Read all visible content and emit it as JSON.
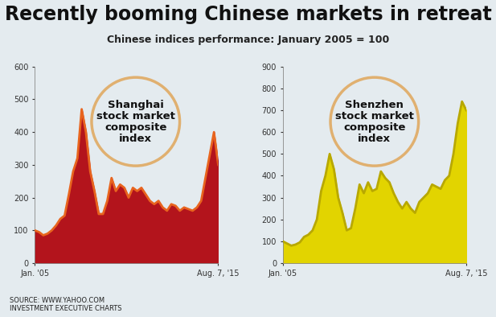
{
  "title": "Recently booming Chinese markets in retreat",
  "subtitle": "Chinese indices performance: January 2005 = 100",
  "source": "SOURCE: WWW.YAHOO.COM\nINVESTMENT EXECUTIVE CHARTS",
  "chart_data": [
    {
      "type": "area",
      "title": "Shanghai\nstock market\ncomposite\nindex",
      "categories": [
        "Jan. '05",
        null,
        null,
        null,
        null,
        null,
        null,
        null,
        null,
        null,
        null,
        null,
        null,
        null,
        null,
        null,
        null,
        null,
        null,
        null,
        null,
        null,
        null,
        null,
        null,
        null,
        null,
        null,
        null,
        null,
        null,
        null,
        null,
        null,
        null,
        null,
        null,
        null,
        null,
        null,
        null,
        null,
        null,
        "Aug. 7, '15"
      ],
      "values": [
        100,
        95,
        85,
        90,
        100,
        115,
        135,
        145,
        210,
        280,
        320,
        470,
        400,
        280,
        220,
        150,
        150,
        190,
        260,
        220,
        240,
        230,
        200,
        230,
        220,
        230,
        210,
        190,
        180,
        190,
        170,
        160,
        180,
        175,
        160,
        170,
        165,
        160,
        170,
        190,
        260,
        330,
        400,
        300
      ],
      "color": "#b3141c",
      "ylim": [
        0,
        600
      ],
      "yticks": [
        0,
        100,
        200,
        300,
        400,
        500,
        600
      ]
    },
    {
      "type": "area",
      "title": "Shenzhen\nstock market\ncomposite\nindex",
      "categories": [
        "Jan. '05",
        null,
        null,
        null,
        null,
        null,
        null,
        null,
        null,
        null,
        null,
        null,
        null,
        null,
        null,
        null,
        null,
        null,
        null,
        null,
        null,
        null,
        null,
        null,
        null,
        null,
        null,
        null,
        null,
        null,
        null,
        null,
        null,
        null,
        null,
        null,
        null,
        null,
        null,
        null,
        null,
        null,
        null,
        "Aug. 7, '15"
      ],
      "values": [
        100,
        90,
        80,
        85,
        95,
        120,
        130,
        150,
        200,
        330,
        400,
        500,
        430,
        300,
        230,
        150,
        160,
        250,
        360,
        320,
        370,
        330,
        340,
        420,
        390,
        370,
        320,
        280,
        250,
        280,
        250,
        230,
        280,
        300,
        320,
        360,
        350,
        340,
        380,
        400,
        500,
        640,
        740,
        700
      ],
      "color": "#e2d400",
      "ylim": [
        0,
        900
      ],
      "yticks": [
        0,
        100,
        200,
        300,
        400,
        500,
        600,
        700,
        800,
        900
      ]
    }
  ]
}
